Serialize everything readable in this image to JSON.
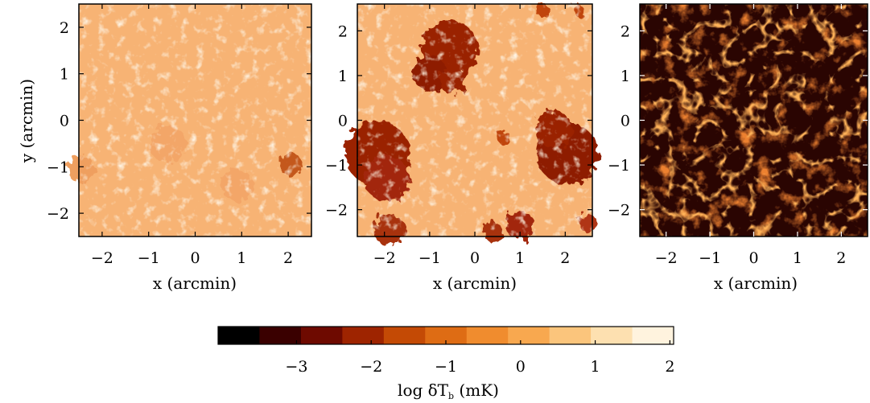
{
  "chart_data": {
    "type": "heatmap",
    "colormap": [
      "#000000",
      "#3a0000",
      "#6e0a00",
      "#9e2400",
      "#c44a05",
      "#de6c14",
      "#f08c2e",
      "#f8a84f",
      "#fbc57c",
      "#fde0b0",
      "#fff3de"
    ],
    "panels": [
      {
        "id": "left",
        "xlabel": "x (arcmin)",
        "ylabel": "y (arcmin)",
        "xlim": [
          -2.5,
          2.5
        ],
        "ylim": [
          -2.5,
          2.5
        ],
        "xticks": [
          -2,
          -1,
          0,
          1,
          2
        ],
        "yticks": [
          -2,
          -1,
          0,
          1,
          2
        ],
        "xtick_labels": [
          "−2",
          "−1",
          "0",
          "1",
          "2"
        ],
        "ytick_labels": [
          "−2",
          "−1",
          "0",
          "1",
          "2"
        ],
        "background_color": "#f7b374",
        "texture_color": "#fde5c4",
        "regions": [
          {
            "x": 2.05,
            "y": -0.95,
            "r": 0.25,
            "color": "#c4581e"
          },
          {
            "x": -2.45,
            "y": -1.05,
            "r": 0.3,
            "color": "#ef9f5f"
          },
          {
            "x": -0.6,
            "y": -0.5,
            "r": 0.4,
            "color": "#f3a667"
          },
          {
            "x": 0.9,
            "y": -1.4,
            "r": 0.35,
            "color": "#f3a667"
          }
        ]
      },
      {
        "id": "middle",
        "xlabel": "x (arcmin)",
        "ylabel": "",
        "xlim": [
          -2.6,
          2.6
        ],
        "ylim": [
          -2.6,
          2.6
        ],
        "xticks": [
          -2,
          -1,
          0,
          1,
          2
        ],
        "yticks": [
          -2,
          -1,
          0,
          1,
          2
        ],
        "xtick_labels": [
          "−2",
          "−1",
          "0",
          "1",
          "2"
        ],
        "ytick_labels": [
          "−2",
          "−1",
          "0",
          "1",
          "2"
        ],
        "background_color": "#f7b374",
        "texture_color": "#fde5c4",
        "regions": [
          {
            "x": -0.55,
            "y": 1.6,
            "r": 0.62,
            "color": "#9a2206"
          },
          {
            "x": -1.0,
            "y": 1.05,
            "r": 0.38,
            "color": "#8e1c04"
          },
          {
            "x": -0.5,
            "y": 0.9,
            "r": 0.3,
            "color": "#9a2206"
          },
          {
            "x": -2.15,
            "y": -0.75,
            "r": 0.72,
            "color": "#9a2206"
          },
          {
            "x": -1.95,
            "y": -1.3,
            "r": 0.5,
            "color": "#a22808"
          },
          {
            "x": -1.9,
            "y": -2.45,
            "r": 0.35,
            "color": "#a83010"
          },
          {
            "x": 2.05,
            "y": -0.75,
            "r": 0.68,
            "color": "#8e1c04"
          },
          {
            "x": 1.75,
            "y": -0.2,
            "r": 0.4,
            "color": "#9a2206"
          },
          {
            "x": 1.0,
            "y": -2.35,
            "r": 0.32,
            "color": "#a22808"
          },
          {
            "x": 0.4,
            "y": -2.5,
            "r": 0.22,
            "color": "#a83010"
          },
          {
            "x": 0.65,
            "y": -0.4,
            "r": 0.15,
            "color": "#c0440e"
          },
          {
            "x": 2.5,
            "y": -2.3,
            "r": 0.2,
            "color": "#b03612"
          },
          {
            "x": 1.5,
            "y": 2.45,
            "r": 0.15,
            "color": "#c0440e"
          },
          {
            "x": 2.3,
            "y": 2.45,
            "r": 0.12,
            "color": "#c0440e"
          }
        ]
      },
      {
        "id": "right",
        "xlabel": "x (arcmin)",
        "ylabel": "",
        "xlim": [
          -2.6,
          2.6
        ],
        "ylim": [
          -2.6,
          2.6
        ],
        "xticks": [
          -2,
          -1,
          0,
          1,
          2
        ],
        "yticks": [
          -2,
          -1,
          0,
          1,
          2
        ],
        "xtick_labels": [
          "−2",
          "−1",
          "0",
          "1",
          "2"
        ],
        "ytick_labels": [
          "−2",
          "−1",
          "0",
          "1",
          "2"
        ],
        "background_color": "#2a0502",
        "texture_color": "#c03206",
        "filament_color": "#e8580c",
        "regions": []
      }
    ],
    "colorbar": {
      "label_prefix": "log δT",
      "label_sub": "b",
      "label_suffix": " (mK)",
      "range": [
        -4.05,
        2.05
      ],
      "ticks": [
        -3,
        -2,
        -1,
        0,
        1,
        2
      ],
      "tick_labels": [
        "−3",
        "−2",
        "−1",
        "0",
        "1",
        "2"
      ],
      "n_bins": 11
    }
  }
}
